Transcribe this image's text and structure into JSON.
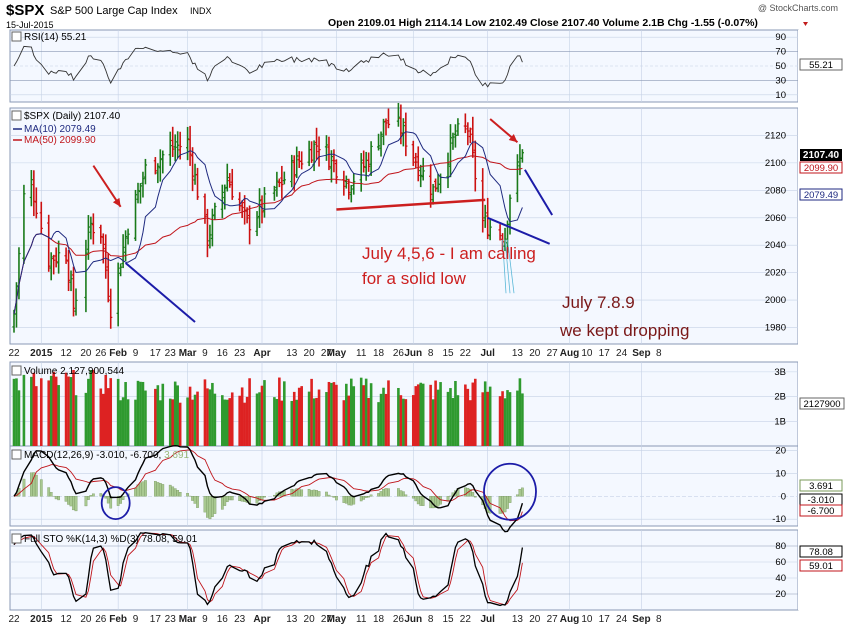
{
  "header": {
    "symbol": "$SPX",
    "name": "S&P 500 Large Cap Index",
    "exchange": "INDX",
    "date": "15-Jul-2015",
    "watermark": "@ StockCharts.com",
    "quote": "Open 2109.01  High 2114.14  Low 2102.49  Close 2107.40  Volume 2.1B  Chg -1.55 (-0.07%)"
  },
  "colors": {
    "up": "#1a7a1a",
    "down": "#cc1111",
    "ma10": "#1f2a80",
    "ma50": "#c0151b",
    "annotation": "#cc1f1f",
    "trend": "#1c1ca8",
    "panelBg": "#f4f8ff",
    "grid": "#c6d2e6"
  },
  "rsi_panel": {
    "legend": "RSI(14) 55.21",
    "ticks": [
      "90",
      "70",
      "50",
      "30",
      "10"
    ],
    "last_label": "55.21"
  },
  "price_panel": {
    "legend": "$SPX (Daily) 2107.40",
    "ma10_legend": "MA(10) 2079.49",
    "ma50_legend": "MA(50) 2099.90",
    "ticks": [
      "2120",
      "2100",
      "2080",
      "2060",
      "2040",
      "2020",
      "2000",
      "1980"
    ],
    "labels": {
      "close": "2107.40",
      "ma50": "2099.90",
      "ma10": "2079.49"
    }
  },
  "annotations": {
    "line1": "July 4,5,6 - I am calling",
    "line2": "for a solid low",
    "line3": "July 7.8.9",
    "line4": "we kept dropping"
  },
  "volume_panel": {
    "legend": "Volume 2,127,900,544",
    "ticks": [
      "3B",
      "2B",
      "1B"
    ],
    "last_label": "2127900"
  },
  "macd_panel": {
    "legend_main": "MACD(12,26,9) -3.010, -6.700, ",
    "legend_hist": "3.691",
    "ticks": [
      "20",
      "10",
      "0",
      "-10"
    ],
    "labels": {
      "hist": "3.691",
      "macd": "-3.010",
      "signal": "-6.700"
    }
  },
  "sto_panel": {
    "legend": "Full STO %K(14,3) %D(3) 78.08, 59.01",
    "ticks": [
      "80",
      "60",
      "40",
      "20"
    ],
    "labels": {
      "k": "78.08",
      "d": "59.01"
    }
  },
  "x_axis": {
    "labels": [
      "22",
      "2015",
      "12",
      "20",
      "26",
      "Feb",
      "9",
      "17",
      "23",
      "Mar",
      "9",
      "16",
      "23",
      "Apr",
      "13",
      "20",
      "27",
      "May",
      "11",
      "18",
      "26",
      "Jun",
      "8",
      "15",
      "22",
      "Jul",
      "13",
      "20",
      "27",
      "Aug",
      "10",
      "17",
      "24",
      "Sep",
      "8"
    ]
  },
  "chart_data": {
    "type": "ohlc",
    "ohlc_summary": {
      "open": 2109.01,
      "high": 2114.14,
      "low": 2102.49,
      "close": 2107.4,
      "change": -1.55,
      "change_pct": -0.07
    },
    "close_path": [
      {
        "x": "2014-12-22",
        "y": 1990
      },
      {
        "x": "2014-12-26",
        "y": 2075
      },
      {
        "x": "2014-12-29",
        "y": 2085
      },
      {
        "x": "2015-01-05",
        "y": 2030
      },
      {
        "x": "2015-01-12",
        "y": 2035
      },
      {
        "x": "2015-01-15",
        "y": 1995
      },
      {
        "x": "2015-01-22",
        "y": 2055
      },
      {
        "x": "2015-01-26",
        "y": 2050
      },
      {
        "x": "2015-01-30",
        "y": 1995
      },
      {
        "x": "2015-02-06",
        "y": 2055
      },
      {
        "x": "2015-02-13",
        "y": 2095
      },
      {
        "x": "2015-02-23",
        "y": 2110
      },
      {
        "x": "2015-03-02",
        "y": 2115
      },
      {
        "x": "2015-03-10",
        "y": 2045
      },
      {
        "x": "2015-03-18",
        "y": 2090
      },
      {
        "x": "2015-03-26",
        "y": 2055
      },
      {
        "x": "2015-04-02",
        "y": 2070
      },
      {
        "x": "2015-04-15",
        "y": 2100
      },
      {
        "x": "2015-04-24",
        "y": 2115
      },
      {
        "x": "2015-05-06",
        "y": 2085
      },
      {
        "x": "2015-05-13",
        "y": 2100
      },
      {
        "x": "2015-05-21",
        "y": 2130
      },
      {
        "x": "2015-05-27",
        "y": 2125
      },
      {
        "x": "2015-06-04",
        "y": 2095
      },
      {
        "x": "2015-06-09",
        "y": 2080
      },
      {
        "x": "2015-06-18",
        "y": 2120
      },
      {
        "x": "2015-06-23",
        "y": 2125
      },
      {
        "x": "2015-06-29",
        "y": 2057
      },
      {
        "x": "2015-07-08",
        "y": 2047
      },
      {
        "x": "2015-07-10",
        "y": 2077
      },
      {
        "x": "2015-07-15",
        "y": 2107.4
      }
    ],
    "ma10_last": 2079.49,
    "ma50_last": 2099.9,
    "rsi_last": 55.21,
    "volume_last": 2127900544,
    "macd": {
      "macd": -3.01,
      "signal": -6.7,
      "histogram": 3.691
    },
    "stochastic": {
      "k": 78.08,
      "d": 59.01
    },
    "panels": {
      "rsi_ticks": [
        10,
        30,
        50,
        70,
        90
      ],
      "price_ticks": [
        1980,
        2000,
        2020,
        2040,
        2060,
        2080,
        2100,
        2120
      ],
      "volume_ticks": [
        "1B",
        "2B",
        "3B"
      ],
      "macd_ticks": [
        -10,
        0,
        10,
        20
      ],
      "sto_ticks": [
        20,
        40,
        60,
        80
      ]
    }
  }
}
